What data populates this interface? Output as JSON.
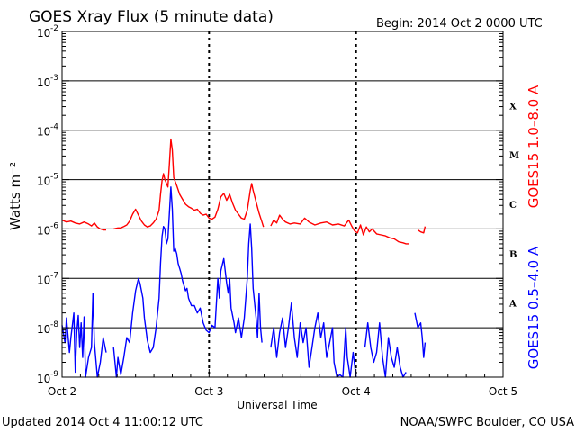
{
  "header": {
    "title": "GOES Xray Flux (5 minute data)",
    "begin": "Begin:  2014 Oct 2 0000 UTC"
  },
  "footer": {
    "updated": "Updated 2014 Oct  4 11:00:12 UTC",
    "credit": "NOAA/SWPC Boulder, CO USA"
  },
  "colors": {
    "long": "#ff0000",
    "short": "#0000ff",
    "axis": "#000000"
  },
  "chart_data": {
    "type": "line",
    "title": "GOES Xray Flux (5 minute data)",
    "xlabel": "Universal Time",
    "ylabel": "Watts m⁻²",
    "yscale": "log",
    "ylim": [
      1e-09,
      0.01
    ],
    "xlim": [
      0,
      3
    ],
    "x_unit": "days since Begin",
    "x_ticks": [
      {
        "x": 0,
        "label": "Oct 2"
      },
      {
        "x": 1,
        "label": "Oct 3"
      },
      {
        "x": 2,
        "label": "Oct 4"
      },
      {
        "x": 3,
        "label": "Oct 5"
      }
    ],
    "y_ticks": [
      {
        "exp": -9,
        "label": "10",
        "sup": "-9"
      },
      {
        "exp": -8,
        "label": "10",
        "sup": "-8"
      },
      {
        "exp": -7,
        "label": "10",
        "sup": "-7"
      },
      {
        "exp": -6,
        "label": "10",
        "sup": "-6"
      },
      {
        "exp": -5,
        "label": "10",
        "sup": "-5"
      },
      {
        "exp": -4,
        "label": "10",
        "sup": "-4"
      },
      {
        "exp": -3,
        "label": "10",
        "sup": "-3"
      },
      {
        "exp": -2,
        "label": "10",
        "sup": "-2"
      }
    ],
    "flare_classes": [
      {
        "label": "X",
        "exp": -3.5
      },
      {
        "label": "M",
        "exp": -4.5
      },
      {
        "label": "C",
        "exp": -5.5
      },
      {
        "label": "B",
        "exp": -6.5
      },
      {
        "label": "A",
        "exp": -7.5
      }
    ],
    "grid": true,
    "series": [
      {
        "name": "GOES15 1.0–8.0 A",
        "color": "#ff0000",
        "points": [
          [
            0.0,
            -5.82
          ],
          [
            0.03,
            -5.86
          ],
          [
            0.06,
            -5.84
          ],
          [
            0.09,
            -5.88
          ],
          [
            0.12,
            -5.9
          ],
          [
            0.15,
            -5.86
          ],
          [
            0.18,
            -5.9
          ],
          [
            0.2,
            -5.94
          ],
          [
            0.22,
            -5.88
          ],
          [
            0.24,
            -5.96
          ],
          [
            0.26,
            -6.0
          ],
          [
            0.28,
            -6.02
          ],
          [
            0.3,
            -6.02
          ],
          null,
          [
            0.35,
            -6.0
          ],
          [
            0.38,
            -5.98
          ],
          [
            0.4,
            -5.98
          ],
          [
            0.42,
            -5.95
          ],
          [
            0.44,
            -5.92
          ],
          [
            0.46,
            -5.84
          ],
          [
            0.48,
            -5.7
          ],
          [
            0.5,
            -5.6
          ],
          [
            0.52,
            -5.72
          ],
          [
            0.54,
            -5.84
          ],
          [
            0.56,
            -5.92
          ],
          [
            0.58,
            -5.96
          ],
          [
            0.6,
            -5.94
          ],
          [
            0.62,
            -5.88
          ],
          [
            0.64,
            -5.8
          ],
          [
            0.66,
            -5.62
          ],
          [
            0.67,
            -5.3
          ],
          [
            0.68,
            -5.02
          ],
          [
            0.69,
            -4.88
          ],
          [
            0.7,
            -5.0
          ],
          [
            0.72,
            -5.15
          ],
          [
            0.73,
            -4.7
          ],
          [
            0.74,
            -4.18
          ],
          [
            0.75,
            -4.4
          ],
          [
            0.76,
            -4.96
          ],
          [
            0.78,
            -5.12
          ],
          [
            0.8,
            -5.3
          ],
          [
            0.82,
            -5.4
          ],
          [
            0.84,
            -5.5
          ],
          [
            0.86,
            -5.55
          ],
          [
            0.88,
            -5.58
          ],
          [
            0.9,
            -5.62
          ],
          [
            0.92,
            -5.6
          ],
          [
            0.94,
            -5.68
          ],
          [
            0.96,
            -5.72
          ],
          [
            0.98,
            -5.7
          ],
          [
            1.0,
            -5.78
          ],
          [
            1.02,
            -5.8
          ],
          [
            1.04,
            -5.76
          ],
          [
            1.06,
            -5.6
          ],
          [
            1.08,
            -5.35
          ],
          [
            1.1,
            -5.28
          ],
          [
            1.12,
            -5.42
          ],
          [
            1.14,
            -5.3
          ],
          [
            1.16,
            -5.48
          ],
          [
            1.18,
            -5.62
          ],
          [
            1.2,
            -5.7
          ],
          [
            1.22,
            -5.78
          ],
          [
            1.24,
            -5.8
          ],
          [
            1.26,
            -5.62
          ],
          [
            1.28,
            -5.22
          ],
          [
            1.29,
            -5.08
          ],
          [
            1.3,
            -5.22
          ],
          [
            1.32,
            -5.45
          ],
          [
            1.34,
            -5.68
          ],
          [
            1.36,
            -5.86
          ],
          [
            1.37,
            -5.96
          ],
          null,
          [
            1.42,
            -5.94
          ],
          [
            1.44,
            -5.82
          ],
          [
            1.46,
            -5.88
          ],
          [
            1.48,
            -5.72
          ],
          [
            1.5,
            -5.8
          ],
          [
            1.52,
            -5.86
          ],
          [
            1.55,
            -5.9
          ],
          [
            1.58,
            -5.88
          ],
          [
            1.62,
            -5.9
          ],
          [
            1.65,
            -5.78
          ],
          [
            1.68,
            -5.86
          ],
          [
            1.72,
            -5.92
          ],
          [
            1.76,
            -5.88
          ],
          [
            1.8,
            -5.86
          ],
          [
            1.84,
            -5.92
          ],
          [
            1.88,
            -5.9
          ],
          [
            1.92,
            -5.94
          ],
          [
            1.95,
            -5.82
          ],
          [
            1.97,
            -5.94
          ],
          [
            1.99,
            -6.04
          ],
          [
            2.01,
            -6.08
          ],
          [
            2.03,
            -5.92
          ],
          [
            2.05,
            -6.12
          ],
          [
            2.07,
            -5.96
          ],
          [
            2.09,
            -6.06
          ],
          [
            2.11,
            -6.0
          ],
          [
            2.14,
            -6.1
          ],
          [
            2.17,
            -6.12
          ],
          [
            2.2,
            -6.14
          ],
          [
            2.23,
            -6.18
          ],
          [
            2.26,
            -6.2
          ],
          [
            2.29,
            -6.26
          ],
          [
            2.32,
            -6.28
          ],
          [
            2.34,
            -6.3
          ],
          [
            2.36,
            -6.3
          ],
          null,
          [
            2.42,
            -6.02
          ],
          [
            2.44,
            -6.06
          ],
          [
            2.46,
            -6.08
          ],
          [
            2.47,
            -5.95
          ]
        ]
      },
      {
        "name": "GOES15 0.5–4.0 A",
        "color": "#0000ff",
        "points": [
          [
            0.0,
            -7.95
          ],
          [
            0.02,
            -8.3
          ],
          [
            0.03,
            -7.8
          ],
          [
            0.05,
            -8.5
          ],
          [
            0.06,
            -8.2
          ],
          [
            0.08,
            -7.7
          ],
          [
            0.09,
            -8.9
          ],
          [
            0.1,
            -8.1
          ],
          [
            0.11,
            -7.75
          ],
          [
            0.12,
            -8.4
          ],
          [
            0.13,
            -7.9
          ],
          [
            0.14,
            -8.6
          ],
          [
            0.15,
            -7.78
          ],
          [
            0.16,
            -9.0
          ],
          [
            0.18,
            -8.6
          ],
          [
            0.2,
            -8.4
          ],
          [
            0.21,
            -7.3
          ],
          [
            0.22,
            -8.3
          ],
          [
            0.24,
            -9.0
          ],
          [
            0.26,
            -8.7
          ],
          [
            0.28,
            -8.2
          ],
          [
            0.3,
            -8.5
          ],
          null,
          [
            0.35,
            -8.4
          ],
          [
            0.37,
            -9.0
          ],
          [
            0.38,
            -8.6
          ],
          [
            0.4,
            -8.95
          ],
          [
            0.42,
            -8.6
          ],
          [
            0.44,
            -8.2
          ],
          [
            0.46,
            -8.3
          ],
          [
            0.48,
            -7.7
          ],
          [
            0.5,
            -7.25
          ],
          [
            0.52,
            -7.0
          ],
          [
            0.53,
            -7.1
          ],
          [
            0.55,
            -7.4
          ],
          [
            0.56,
            -7.8
          ],
          [
            0.58,
            -8.25
          ],
          [
            0.6,
            -8.5
          ],
          [
            0.62,
            -8.4
          ],
          [
            0.64,
            -8.0
          ],
          [
            0.66,
            -7.4
          ],
          [
            0.67,
            -6.7
          ],
          [
            0.68,
            -6.15
          ],
          [
            0.69,
            -5.95
          ],
          [
            0.7,
            -6.0
          ],
          [
            0.71,
            -6.3
          ],
          [
            0.72,
            -6.2
          ],
          [
            0.73,
            -5.7
          ],
          [
            0.74,
            -5.15
          ],
          [
            0.75,
            -5.6
          ],
          [
            0.76,
            -6.45
          ],
          [
            0.77,
            -6.4
          ],
          [
            0.78,
            -6.5
          ],
          [
            0.79,
            -6.7
          ],
          [
            0.8,
            -6.8
          ],
          [
            0.81,
            -6.9
          ],
          [
            0.82,
            -7.05
          ],
          [
            0.84,
            -7.25
          ],
          [
            0.85,
            -7.2
          ],
          [
            0.86,
            -7.4
          ],
          [
            0.88,
            -7.55
          ],
          [
            0.9,
            -7.55
          ],
          [
            0.92,
            -7.7
          ],
          [
            0.94,
            -7.6
          ],
          [
            0.96,
            -7.9
          ],
          [
            0.98,
            -8.05
          ],
          [
            1.0,
            -8.1
          ],
          [
            1.02,
            -7.95
          ],
          [
            1.04,
            -8.0
          ],
          [
            1.05,
            -7.5
          ],
          [
            1.06,
            -7.0
          ],
          [
            1.07,
            -7.4
          ],
          [
            1.08,
            -6.85
          ],
          [
            1.1,
            -6.6
          ],
          [
            1.12,
            -7.1
          ],
          [
            1.13,
            -7.3
          ],
          [
            1.14,
            -7.0
          ],
          [
            1.15,
            -7.6
          ],
          [
            1.17,
            -7.9
          ],
          [
            1.18,
            -8.1
          ],
          [
            1.2,
            -7.8
          ],
          [
            1.22,
            -8.2
          ],
          [
            1.24,
            -7.8
          ],
          [
            1.26,
            -7.0
          ],
          [
            1.27,
            -6.3
          ],
          [
            1.28,
            -5.9
          ],
          [
            1.29,
            -6.4
          ],
          [
            1.3,
            -7.2
          ],
          [
            1.32,
            -7.8
          ],
          [
            1.33,
            -8.2
          ],
          [
            1.34,
            -7.3
          ],
          [
            1.35,
            -8.0
          ],
          [
            1.36,
            -8.3
          ],
          null,
          [
            1.42,
            -8.4
          ],
          [
            1.44,
            -8.0
          ],
          [
            1.46,
            -8.6
          ],
          [
            1.48,
            -8.1
          ],
          [
            1.5,
            -7.8
          ],
          [
            1.52,
            -8.4
          ],
          [
            1.54,
            -8.0
          ],
          [
            1.56,
            -7.5
          ],
          [
            1.58,
            -8.2
          ],
          [
            1.6,
            -8.6
          ],
          [
            1.62,
            -7.9
          ],
          [
            1.64,
            -8.3
          ],
          [
            1.66,
            -8.0
          ],
          [
            1.68,
            -8.8
          ],
          [
            1.7,
            -8.4
          ],
          [
            1.72,
            -8.0
          ],
          [
            1.74,
            -7.7
          ],
          [
            1.76,
            -8.2
          ],
          [
            1.78,
            -7.9
          ],
          [
            1.8,
            -8.6
          ],
          [
            1.82,
            -8.3
          ],
          [
            1.84,
            -8.0
          ],
          [
            1.85,
            -8.7
          ],
          [
            1.87,
            -9.0
          ],
          [
            1.89,
            -8.95
          ],
          [
            1.91,
            -9.0
          ],
          [
            1.93,
            -8.0
          ],
          [
            1.94,
            -8.6
          ],
          [
            1.96,
            -9.0
          ],
          [
            1.98,
            -8.5
          ],
          [
            2.0,
            -9.0
          ],
          null,
          [
            2.06,
            -8.4
          ],
          [
            2.08,
            -7.9
          ],
          [
            2.1,
            -8.4
          ],
          [
            2.12,
            -8.7
          ],
          [
            2.14,
            -8.5
          ],
          [
            2.16,
            -7.9
          ],
          [
            2.18,
            -8.6
          ],
          [
            2.2,
            -9.0
          ],
          [
            2.22,
            -8.2
          ],
          [
            2.24,
            -8.6
          ],
          [
            2.26,
            -8.8
          ],
          [
            2.28,
            -8.4
          ],
          [
            2.3,
            -8.8
          ],
          [
            2.32,
            -9.0
          ],
          [
            2.34,
            -8.9
          ],
          null,
          [
            2.4,
            -7.7
          ],
          [
            2.42,
            -8.0
          ],
          [
            2.44,
            -7.9
          ],
          [
            2.45,
            -8.2
          ],
          [
            2.46,
            -8.6
          ],
          [
            2.47,
            -8.3
          ]
        ]
      }
    ]
  }
}
